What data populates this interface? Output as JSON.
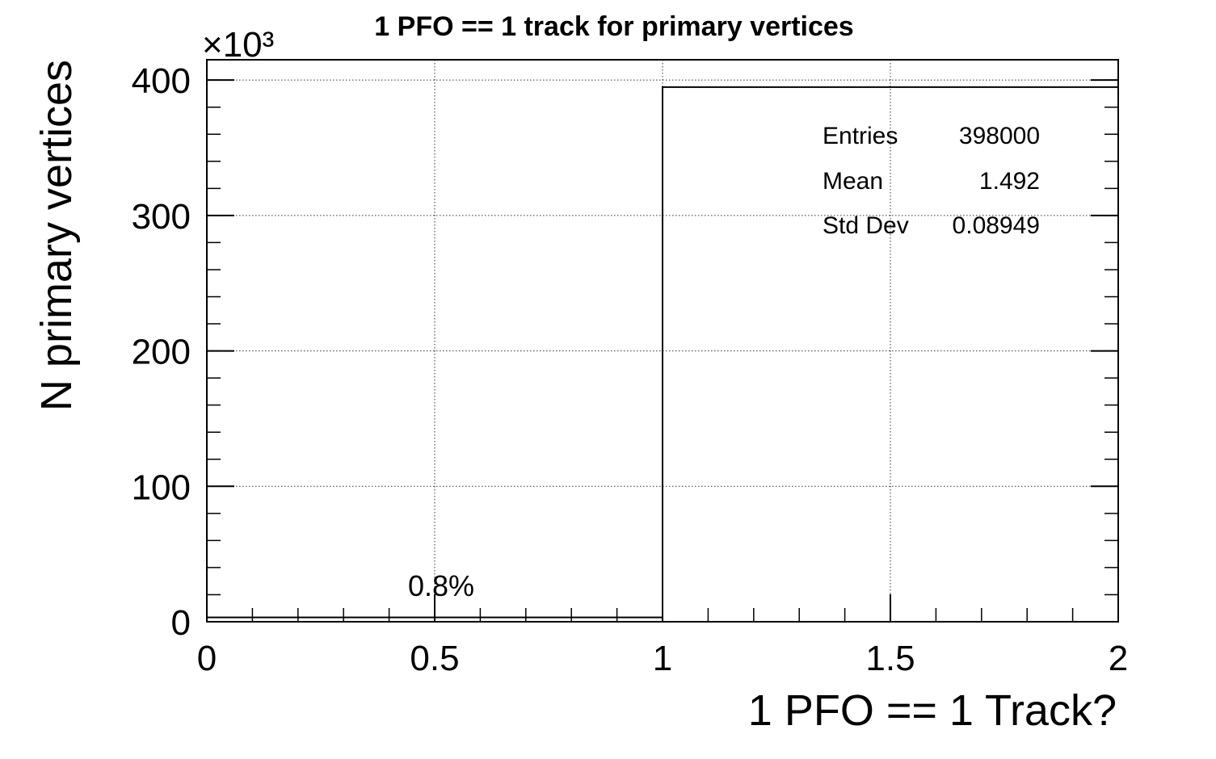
{
  "chart_data": {
    "type": "bar",
    "title": "1 PFO == 1 track for primary vertices",
    "xlabel": "1 PFO == 1 Track?",
    "ylabel": "N primary vertices",
    "y_multiplier": "×10³",
    "xlim": [
      0,
      2
    ],
    "ylim": [
      0,
      415000.0
    ],
    "x_ticks": [
      "0",
      "0.5",
      "1",
      "1.5",
      "2"
    ],
    "y_ticks": [
      "0",
      "100",
      "200",
      "300",
      "400"
    ],
    "grid": true,
    "bins": [
      {
        "low": 0,
        "high": 1,
        "value": 3200
      },
      {
        "low": 1,
        "high": 2,
        "value": 394800
      }
    ],
    "annotation": "0.8%",
    "stats": {
      "entries_label": "Entries",
      "entries_value": "398000",
      "mean_label": "Mean",
      "mean_value": "1.492",
      "std_label": "Std Dev",
      "std_value": "0.08949"
    }
  }
}
